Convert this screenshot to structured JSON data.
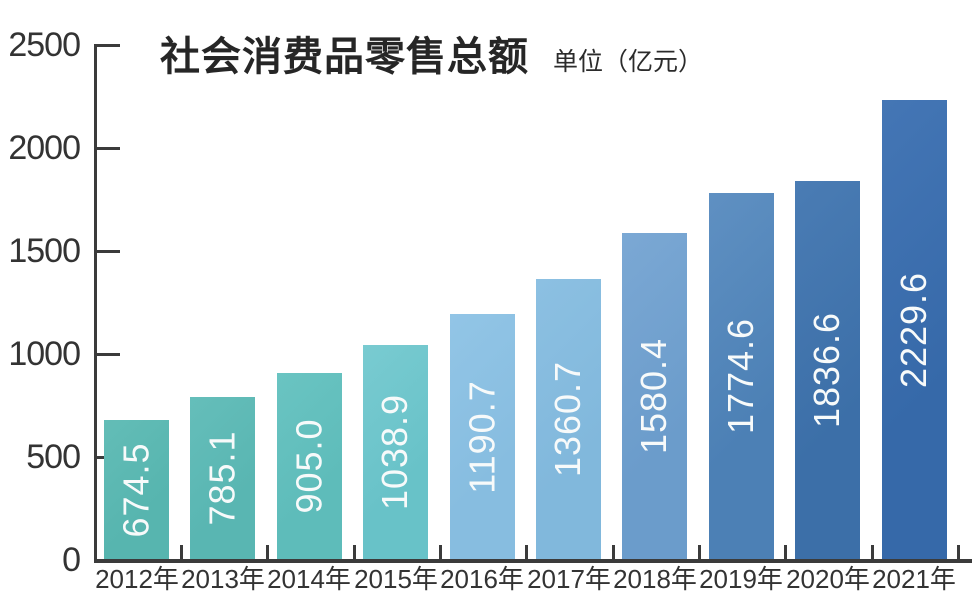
{
  "chart_data": {
    "type": "bar",
    "title": "社会消费品零售总额",
    "unit_label": "单位（亿元）",
    "categories": [
      "2012年",
      "2013年",
      "2014年",
      "2015年",
      "2016年",
      "2017年",
      "2018年",
      "2019年",
      "2020年",
      "2021年"
    ],
    "values": [
      674.5,
      785.1,
      905.0,
      1038.9,
      1190.7,
      1360.7,
      1580.4,
      1774.6,
      1836.6,
      2229.6
    ],
    "value_labels": [
      "674.5",
      "785.1",
      "905.0",
      "1038.9",
      "1190.7",
      "1360.7",
      "1580.4",
      "1774.6",
      "1836.6",
      "2229.6"
    ],
    "bar_colors": [
      "#57B5AF",
      "#59B6B2",
      "#5EBCBA",
      "#68C2C8",
      "#87BDE0",
      "#81B8DC",
      "#6B9CCB",
      "#4C80B5",
      "#3C6FA8",
      "#3669A9"
    ],
    "bar_colors_light": [
      "#63BDB7",
      "#65BEBA",
      "#6AC4C2",
      "#79CBD1",
      "#92C5E6",
      "#8CC0E2",
      "#7BA8D4",
      "#5F90C2",
      "#4A7CB4",
      "#4476B5"
    ],
    "y_ticks": [
      "2500",
      "2000",
      "1500",
      "1000",
      "500",
      "0"
    ],
    "ylim": [
      0,
      2500
    ],
    "xlabel": "",
    "ylabel": "",
    "grid": "off",
    "legend": "none",
    "axis_color": "#3B3B3B",
    "value_text_color": "#FFFFFF",
    "background_color": "#FFFFFF"
  }
}
